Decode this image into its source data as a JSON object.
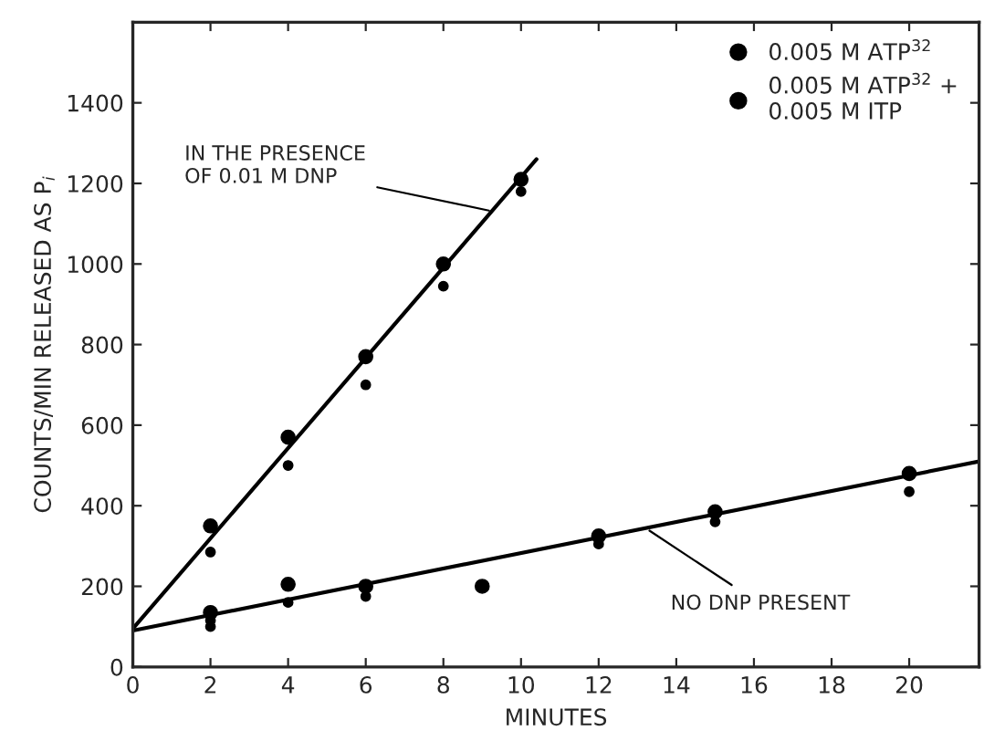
{
  "chart_data": {
    "type": "scatter",
    "xlabel": "MINUTES",
    "ylabel": "COUNTS/MIN RELEASED AS P$_{i}$",
    "xlim": [
      0,
      21.8
    ],
    "xticks": [
      0,
      2,
      4,
      6,
      8,
      10,
      12,
      14,
      16,
      18,
      20
    ],
    "ylim": [
      0,
      1600
    ],
    "yticks": [
      0,
      200,
      400,
      600,
      800,
      1000,
      1200,
      1400
    ],
    "grid": false,
    "legend": "top right",
    "marker": "circle",
    "series": [
      {
        "name": "0.005 M ATP$^{32}$",
        "color": "#000000",
        "x": [
          2,
          4,
          6,
          8,
          10,
          2,
          4,
          6,
          9,
          12,
          15,
          20
        ],
        "values": [
          350,
          570,
          770,
          1000,
          1210,
          135,
          205,
          200,
          200,
          325,
          385,
          480
        ]
      },
      {
        "name": "0.005 M ATP$^{32}$ +\n0.005 M ITP",
        "color": "#000000",
        "x": [
          2,
          4,
          6,
          8,
          10,
          2,
          2,
          4,
          6,
          12,
          15,
          20
        ],
        "values": [
          285,
          500,
          700,
          945,
          1180,
          115,
          100,
          160,
          175,
          305,
          360,
          435
        ]
      },
      {
        "type": "line",
        "marker": "none",
        "color": "#000000",
        "x": [
          0,
          10.4
        ],
        "values": [
          95,
          1260
        ]
      },
      {
        "type": "line",
        "marker": "none",
        "color": "#000000",
        "x": [
          0,
          21.8
        ],
        "values": [
          90,
          510
        ]
      }
    ],
    "annotations": [
      {
        "text": "IN THE PRESENCE\nOF 0.01 M DNP",
        "x": 9.3,
        "y": 1130
      },
      {
        "text": "NO DNP PRESENT",
        "x": 13.2,
        "y": 345
      }
    ]
  }
}
